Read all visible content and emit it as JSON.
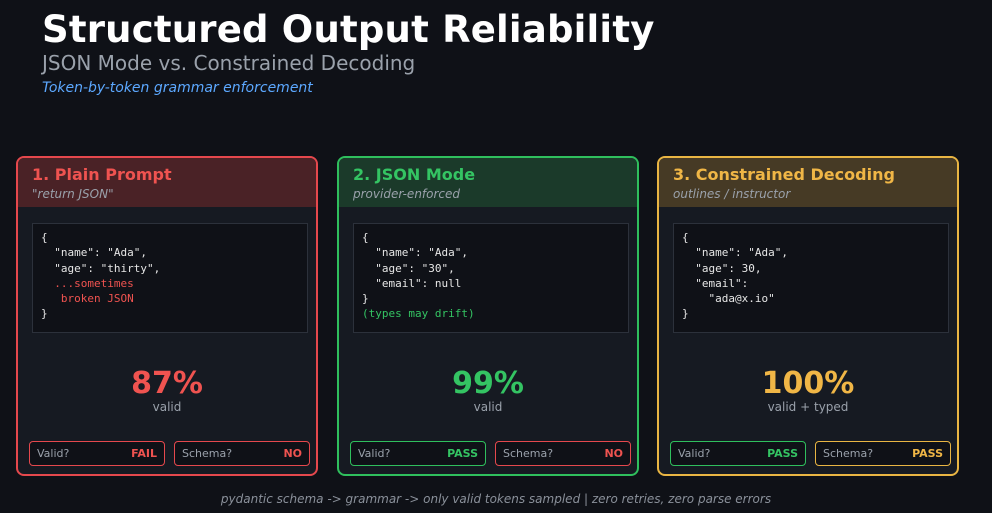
{
  "header": {
    "title": "Structured Output Reliability",
    "subtitle": "JSON Mode vs. Constrained Decoding",
    "tagline": "Token-by-token grammar enforcement"
  },
  "cards": [
    {
      "title": "1. Plain Prompt",
      "subtitle": "\"return JSON\"",
      "code": [
        "{",
        "  \"name\": \"Ada\",",
        "  \"age\": \"thirty\",",
        "  ...sometimes",
        "   broken JSON",
        "}"
      ],
      "stat": "87%",
      "stat_label": "valid",
      "valid_label": "Valid?",
      "valid_value": "FAIL",
      "schema_label": "Schema?",
      "schema_value": "NO"
    },
    {
      "title": "2. JSON Mode",
      "subtitle": "provider-enforced",
      "code": [
        "{",
        "  \"name\": \"Ada\",",
        "  \"age\": \"30\",",
        "  \"email\": null",
        "}",
        "(types may drift)"
      ],
      "stat": "99%",
      "stat_label": "valid",
      "valid_label": "Valid?",
      "valid_value": "PASS",
      "schema_label": "Schema?",
      "schema_value": "NO"
    },
    {
      "title": "3. Constrained Decoding",
      "subtitle": "outlines / instructor",
      "code": [
        "{",
        "  \"name\": \"Ada\",",
        "  \"age\": 30,",
        "  \"email\":",
        "    \"ada@x.io\"",
        "}"
      ],
      "stat": "100%",
      "stat_label": "valid + typed",
      "valid_label": "Valid?",
      "valid_value": "PASS",
      "schema_label": "Schema?",
      "schema_value": "PASS"
    }
  ],
  "footer": "pydantic schema -> grammar -> only valid tokens sampled  |  zero retries, zero parse errors",
  "colors": {
    "red": "#e5484d",
    "green": "#2fbf5d",
    "yellow": "#e9b543",
    "background": "#0f1117"
  }
}
